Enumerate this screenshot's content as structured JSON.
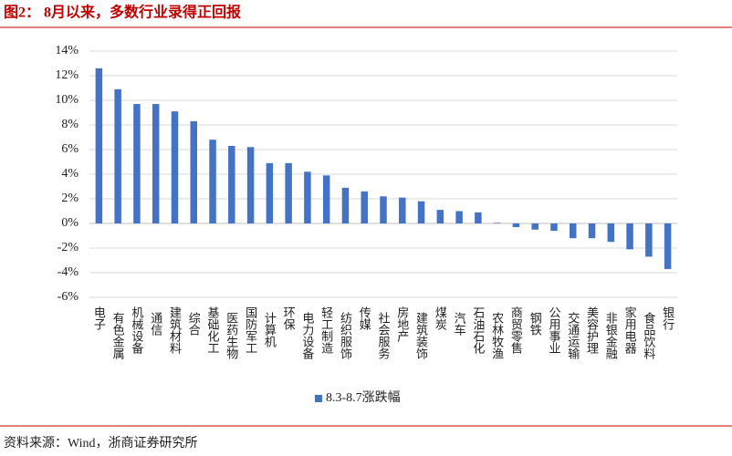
{
  "title": "图2：  8月以来，多数行业录得正回报",
  "source": "资料来源：Wind，浙商证券研究所",
  "chart_data": {
    "type": "bar",
    "categories": [
      "电子",
      "有色金属",
      "机械设备",
      "通信",
      "建筑材料",
      "综合",
      "基础化工",
      "医药生物",
      "国防军工",
      "计算机",
      "环保",
      "电力设备",
      "轻工制造",
      "纺织服饰",
      "传媒",
      "社会服务",
      "房地产",
      "建筑装饰",
      "煤炭",
      "汽车",
      "石油石化",
      "农林牧渔",
      "商贸零售",
      "钢铁",
      "公用事业",
      "交通运输",
      "美容护理",
      "非银金融",
      "家用电器",
      "食品饮料",
      "银行"
    ],
    "series": [
      {
        "name": "8.3-8.7涨跌幅",
        "color": "#4472c4",
        "values": [
          12.6,
          10.9,
          9.7,
          9.7,
          9.1,
          8.3,
          6.8,
          6.3,
          6.2,
          4.9,
          4.9,
          4.2,
          3.9,
          2.9,
          2.6,
          2.2,
          2.1,
          1.8,
          1.1,
          1.0,
          0.9,
          0.05,
          -0.3,
          -0.5,
          -0.6,
          -1.2,
          -1.2,
          -1.5,
          -2.1,
          -2.7,
          -3.7
        ]
      }
    ],
    "ylim": [
      -6,
      14
    ],
    "yticks": [
      {
        "value": -6,
        "label": "-6%"
      },
      {
        "value": -4,
        "label": "-4%"
      },
      {
        "value": -2,
        "label": "-2%"
      },
      {
        "value": 0,
        "label": "0%"
      },
      {
        "value": 2,
        "label": "2%"
      },
      {
        "value": 4,
        "label": "4%"
      },
      {
        "value": 6,
        "label": "6%"
      },
      {
        "value": 8,
        "label": "8%"
      },
      {
        "value": 10,
        "label": "10%"
      },
      {
        "value": 12,
        "label": "12%"
      },
      {
        "value": 14,
        "label": "14%"
      }
    ],
    "grid": true,
    "legend": "bottom"
  }
}
